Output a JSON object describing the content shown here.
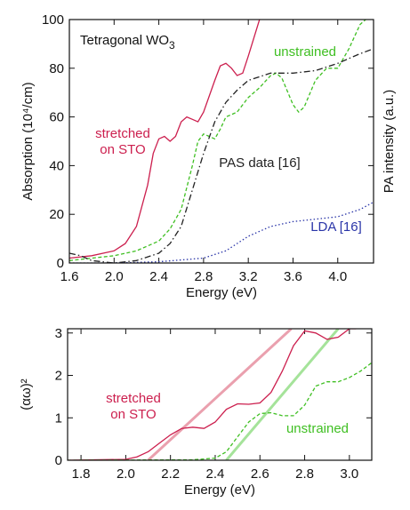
{
  "chart_data": [
    {
      "type": "line",
      "title": "Tetragonal WO",
      "title_subscript": "3",
      "xlabel": "Energy (eV)",
      "ylabel": "Absorption (10⁴/cm)",
      "y2label": "PA intensity (a.u.)",
      "xlim": [
        1.6,
        4.32
      ],
      "ylim": [
        0,
        100
      ],
      "xticks": [
        1.6,
        {
          "value": 2.0,
          "label": "2.0"
        },
        2.4,
        2.8,
        3.2,
        3.6,
        {
          "value": 4.0,
          "label": "4.0"
        }
      ],
      "yticks": [
        0,
        20,
        40,
        60,
        80,
        100
      ],
      "series": [
        {
          "name": "stretched on STO",
          "color": "#cc1f4e",
          "dash": "solid",
          "x": [
            1.6,
            1.8,
            2.0,
            2.1,
            2.2,
            2.3,
            2.35,
            2.4,
            2.45,
            2.5,
            2.55,
            2.6,
            2.65,
            2.7,
            2.75,
            2.8,
            2.9,
            2.95,
            3.0,
            3.05,
            3.1,
            3.15,
            3.2,
            3.3
          ],
          "values": [
            2,
            3,
            5,
            8,
            15,
            32,
            45,
            51,
            52,
            50,
            52,
            58,
            60,
            59,
            58,
            62,
            75,
            81,
            82,
            80,
            77,
            78,
            85,
            100
          ]
        },
        {
          "name": "unstrained",
          "color": "#3fbf22",
          "dash": "dashed",
          "x": [
            1.6,
            2.0,
            2.2,
            2.4,
            2.5,
            2.6,
            2.7,
            2.75,
            2.8,
            2.85,
            2.9,
            2.95,
            3.0,
            3.05,
            3.1,
            3.2,
            3.3,
            3.4,
            3.45,
            3.5,
            3.6,
            3.65,
            3.7,
            3.8,
            3.9,
            4.0,
            4.1,
            4.2,
            4.25
          ],
          "values": [
            1,
            3,
            5,
            9,
            14,
            22,
            40,
            50,
            53,
            52,
            51,
            55,
            60,
            61,
            62,
            68,
            72,
            77,
            78,
            76,
            65,
            62,
            64,
            75,
            80,
            80,
            88,
            98,
            100
          ]
        },
        {
          "name": "PAS data [16]",
          "color": "#222222",
          "dash": "dashdot",
          "x": [
            1.6,
            1.7,
            1.8,
            2.0,
            2.2,
            2.4,
            2.5,
            2.6,
            2.7,
            2.8,
            2.9,
            3.0,
            3.1,
            3.2,
            3.4,
            3.6,
            3.8,
            4.0,
            4.2,
            4.32
          ],
          "values": [
            4,
            3,
            1,
            0,
            1,
            4,
            8,
            15,
            30,
            45,
            58,
            66,
            71,
            75,
            78,
            78,
            79,
            82,
            86,
            88
          ]
        },
        {
          "name": "LDA [16]",
          "color": "#2a35a8",
          "dash": "dotted",
          "x": [
            1.6,
            2.0,
            2.4,
            2.8,
            3.0,
            3.2,
            3.4,
            3.6,
            3.8,
            4.0,
            4.2,
            4.32
          ],
          "values": [
            0,
            0,
            0.5,
            2,
            5,
            11,
            15,
            17,
            18,
            19,
            22,
            25
          ]
        }
      ]
    },
    {
      "type": "line",
      "xlabel": "Energy (eV)",
      "ylabel": "(αω)²",
      "xlim": [
        1.74,
        3.1
      ],
      "ylim": [
        0,
        3.1
      ],
      "xticks": [
        1.8,
        {
          "value": 2.0,
          "label": "2.0"
        },
        2.2,
        2.4,
        2.6,
        2.8,
        {
          "value": 3.0,
          "label": "3.0"
        }
      ],
      "yticks": [
        0,
        1,
        2,
        3
      ],
      "series": [
        {
          "color": "#eaa0ae",
          "dash": "solid",
          "width": 3,
          "x": [
            2.1,
            2.74
          ],
          "values": [
            0,
            3.1
          ]
        },
        {
          "color": "#a5e39a",
          "dash": "solid",
          "width": 3,
          "x": [
            2.45,
            2.95
          ],
          "values": [
            0,
            3.1
          ]
        },
        {
          "name": "stretched on STO",
          "color": "#cc1f4e",
          "dash": "solid",
          "x": [
            1.74,
            2.0,
            2.05,
            2.1,
            2.15,
            2.2,
            2.25,
            2.3,
            2.35,
            2.4,
            2.45,
            2.5,
            2.55,
            2.6,
            2.65,
            2.7,
            2.75,
            2.8,
            2.85,
            2.9,
            2.95,
            3.0,
            3.03
          ],
          "values": [
            0,
            0.02,
            0.08,
            0.2,
            0.4,
            0.6,
            0.75,
            0.78,
            0.75,
            0.9,
            1.2,
            1.33,
            1.32,
            1.35,
            1.6,
            2.1,
            2.7,
            3.05,
            3.0,
            2.85,
            2.9,
            3.1,
            3.1
          ]
        },
        {
          "name": "unstrained",
          "color": "#3fbf22",
          "dash": "dashed",
          "x": [
            1.74,
            2.3,
            2.4,
            2.45,
            2.5,
            2.55,
            2.6,
            2.65,
            2.7,
            2.75,
            2.8,
            2.85,
            2.9,
            2.95,
            3.0,
            3.05,
            3.1
          ],
          "values": [
            0,
            0.01,
            0.05,
            0.2,
            0.55,
            0.9,
            1.1,
            1.12,
            1.05,
            1.05,
            1.3,
            1.75,
            1.85,
            1.85,
            1.95,
            2.1,
            2.3
          ]
        }
      ]
    }
  ]
}
